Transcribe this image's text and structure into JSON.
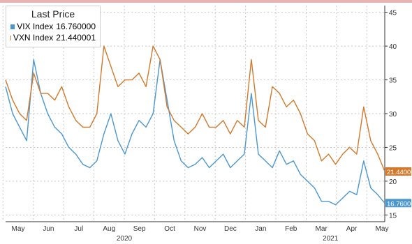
{
  "colors": {
    "vix": "#4b97d0",
    "vxn": "#d2792b",
    "grid": "#c8c8c8",
    "axis": "#333333",
    "topbar": "#e8b3b3"
  },
  "legend": {
    "title": "Last Price",
    "items": [
      {
        "name": "VIX Index",
        "value": "16.760000",
        "color": "#4b97d0"
      },
      {
        "name": "VXN Index",
        "value": "21.440001",
        "color": "#d2792b"
      }
    ]
  },
  "chart_data": {
    "type": "line",
    "title": "Last Price",
    "xlabel": "",
    "ylabel": "",
    "ylim": [
      14,
      46
    ],
    "yticks": [
      15,
      20,
      25,
      30,
      35,
      40,
      45
    ],
    "grid": true,
    "legend_position": "top-left",
    "axis_side": "right",
    "month_ticks": [
      "May",
      "Jun",
      "Jul",
      "Aug",
      "Sep",
      "Oct",
      "Nov",
      "Dec",
      "Jan",
      "Feb",
      "Mar",
      "Apr",
      "May"
    ],
    "year_labels": [
      "2020",
      "2021"
    ],
    "end_labels": [
      "21.44000",
      "16.76000"
    ],
    "n_points": 55,
    "series": [
      {
        "name": "VIX Index",
        "color": "#4b97d0",
        "values": [
          34,
          30,
          28,
          26,
          38,
          33,
          30,
          28,
          27,
          25,
          24,
          22.5,
          22,
          23,
          27,
          30,
          26,
          24,
          27,
          29,
          28,
          30,
          38,
          32,
          26,
          23,
          22,
          22.5,
          23.5,
          22,
          23,
          24,
          22,
          23,
          24,
          33,
          24,
          23,
          22,
          24.5,
          22.5,
          23,
          21,
          20,
          19,
          17,
          17,
          16.5,
          17.5,
          18.5,
          18,
          23,
          19,
          18,
          16.76
        ]
      },
      {
        "name": "VXN Index",
        "color": "#d2792b",
        "values": [
          35,
          32,
          30,
          29,
          36,
          33,
          33,
          32,
          34,
          31,
          29,
          28,
          28,
          30,
          40,
          37,
          34,
          35,
          35,
          36,
          34,
          40,
          38,
          31,
          29,
          28,
          27,
          28,
          30,
          28,
          28,
          29,
          27,
          29,
          28,
          38,
          29,
          28,
          34,
          33,
          31,
          32,
          30,
          27,
          26,
          23,
          24,
          22.5,
          24,
          25,
          24,
          31,
          26,
          24,
          21.44
        ]
      }
    ]
  }
}
